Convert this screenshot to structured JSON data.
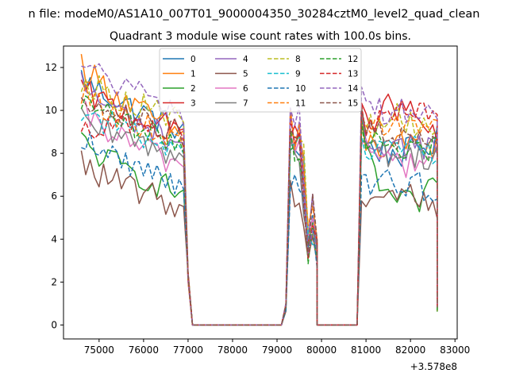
{
  "figure": {
    "suptitle": "n file: modeM0/AS1A10_007T01_9000004350_30284cztM0_level2_quad_clean",
    "title": "Quadrant 3 module wise count rates with 100.0s bins.",
    "offset_label": "+3.578e8"
  },
  "chart_data": {
    "type": "line",
    "title": "Quadrant 3 module wise count rates with 100.0s bins.",
    "xlabel": "",
    "ylabel": "",
    "x_offset": 357800000,
    "xlim": [
      74200,
      83050
    ],
    "ylim": [
      -0.65,
      13.0
    ],
    "xticks": [
      75000,
      76000,
      77000,
      78000,
      79000,
      80000,
      81000,
      82000,
      83000
    ],
    "xtick_labels": [
      "75000",
      "76000",
      "77000",
      "78000",
      "79000",
      "80000",
      "81000",
      "82000",
      "83000"
    ],
    "yticks": [
      0,
      2,
      4,
      6,
      8,
      10,
      12
    ],
    "ytick_labels": [
      "0",
      "2",
      "4",
      "6",
      "8",
      "10",
      "12"
    ],
    "grid": false,
    "legend_position": "top-center",
    "legend_columns": 4,
    "bin_size_s": 100,
    "segments": [
      {
        "start": 74600,
        "end": 76900
      },
      {
        "start": 79100,
        "end": 79900
      },
      {
        "start": 80800,
        "end": 82600
      }
    ],
    "series": [
      {
        "name": "0",
        "color": "#1f77b4",
        "dash": false,
        "level": [
          11.6,
          9.1,
          8.8,
          8.6,
          8.0,
          8.6
        ]
      },
      {
        "name": "1",
        "color": "#ff7f0e",
        "dash": false,
        "level": [
          12.3,
          8.8,
          9.2,
          8.6,
          8.3,
          8.4
        ]
      },
      {
        "name": "2",
        "color": "#2ca02c",
        "dash": false,
        "level": [
          8.6,
          6.1,
          8.6,
          8.6,
          6.8,
          5.9
        ]
      },
      {
        "name": "3",
        "color": "#d62728",
        "dash": false,
        "level": [
          11.0,
          9.0,
          9.4,
          9.2,
          10.4,
          8.5
        ]
      },
      {
        "name": "4",
        "color": "#9467bd",
        "dash": false,
        "level": [
          11.3,
          8.4,
          9.5,
          8.7,
          8.6,
          8.2
        ]
      },
      {
        "name": "5",
        "color": "#8c564b",
        "dash": false,
        "level": [
          7.6,
          5.5,
          6.4,
          5.8,
          6.3,
          5.5
        ]
      },
      {
        "name": "6",
        "color": "#e377c2",
        "dash": false,
        "level": [
          10.0,
          7.4,
          8.9,
          8.3,
          7.8,
          7.7
        ]
      },
      {
        "name": "7",
        "color": "#7f7f7f",
        "dash": false,
        "level": [
          9.5,
          7.9,
          8.7,
          8.4,
          8.1,
          7.9
        ]
      },
      {
        "name": "8",
        "color": "#bcbd22",
        "dash": true,
        "level": [
          11.5,
          9.6,
          9.3,
          9.0,
          9.6,
          9.1
        ]
      },
      {
        "name": "9",
        "color": "#17becf",
        "dash": true,
        "level": [
          10.1,
          8.2,
          8.8,
          8.3,
          8.6,
          7.8
        ]
      },
      {
        "name": "10",
        "color": "#1f77b4",
        "dash": true,
        "level": [
          8.8,
          6.6,
          7.0,
          6.4,
          6.7,
          6.3
        ]
      },
      {
        "name": "11",
        "color": "#ff7f0e",
        "dash": true,
        "level": [
          10.8,
          8.6,
          9.6,
          9.0,
          9.5,
          8.8
        ]
      },
      {
        "name": "12",
        "color": "#2ca02c",
        "dash": true,
        "level": [
          10.5,
          8.4,
          8.8,
          8.4,
          8.5,
          8.2
        ]
      },
      {
        "name": "13",
        "color": "#d62728",
        "dash": true,
        "level": [
          9.4,
          9.0,
          9.5,
          9.3,
          9.5,
          9.7
        ]
      },
      {
        "name": "14",
        "color": "#9467bd",
        "dash": true,
        "level": [
          12.4,
          9.8,
          10.2,
          10.0,
          10.2,
          9.6
        ]
      },
      {
        "name": "15",
        "color": "#8c564b",
        "dash": true,
        "level": [
          10.9,
          8.8,
          9.4,
          8.9,
          8.9,
          8.7
        ]
      }
    ]
  }
}
